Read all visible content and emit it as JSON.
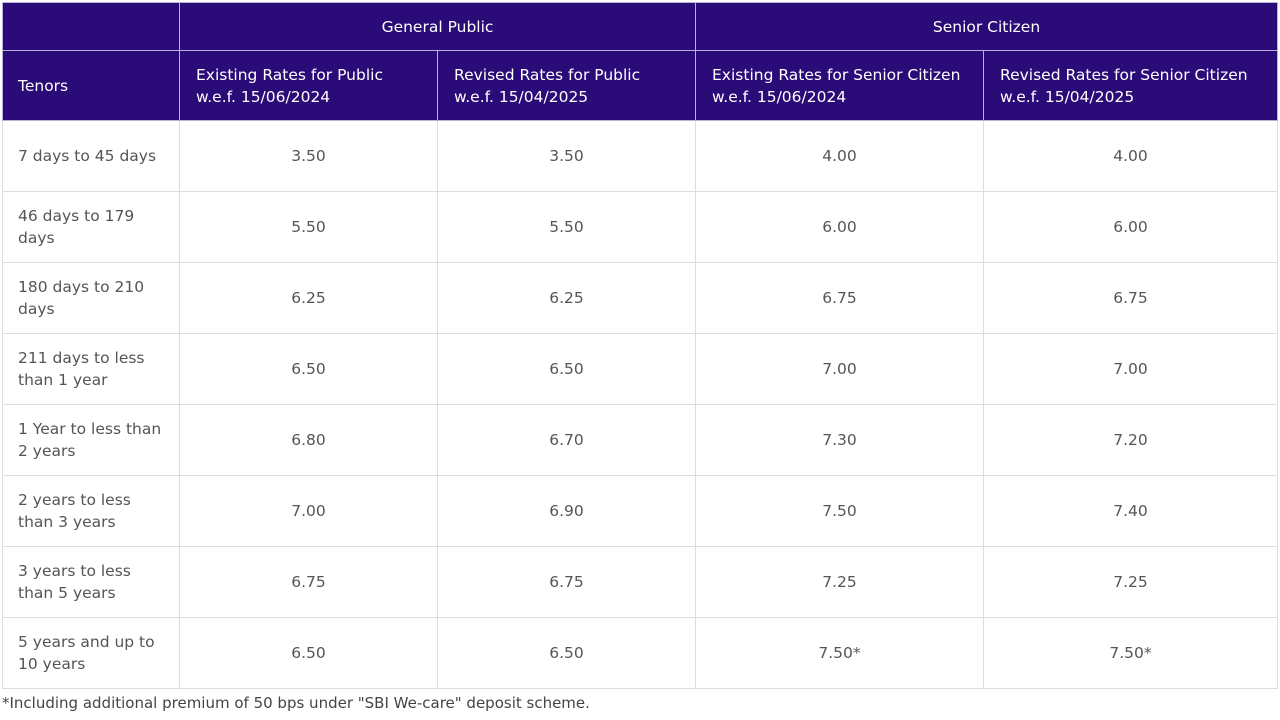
{
  "header": {
    "group_general": "General Public",
    "group_senior": "Senior Citizen",
    "tenors": "Tenors",
    "col_existing_public": "Existing Rates for Public w.e.f. 15/06/2024",
    "col_revised_public": "Revised Rates for Public w.e.f. 15/04/2025",
    "col_existing_senior": "Existing Rates for Senior Citizen w.e.f. 15/06/2024",
    "col_revised_senior": "Revised Rates for Senior Citizen w.e.f. 15/04/2025"
  },
  "rows": [
    {
      "tenor": "7 days to 45 days",
      "ep": "3.50",
      "rp": "3.50",
      "es": "4.00",
      "rs": "4.00"
    },
    {
      "tenor": "46 days to 179 days",
      "ep": "5.50",
      "rp": "5.50",
      "es": "6.00",
      "rs": "6.00"
    },
    {
      "tenor": "180 days to 210 days",
      "ep": "6.25",
      "rp": "6.25",
      "es": "6.75",
      "rs": "6.75"
    },
    {
      "tenor": "211 days to less than 1 year",
      "ep": "6.50",
      "rp": "6.50",
      "es": "7.00",
      "rs": "7.00"
    },
    {
      "tenor": "1 Year to less than 2 years",
      "ep": "6.80",
      "rp": "6.70",
      "es": "7.30",
      "rs": "7.20"
    },
    {
      "tenor": "2 years to less than 3 years",
      "ep": "7.00",
      "rp": "6.90",
      "es": "7.50",
      "rs": "7.40"
    },
    {
      "tenor": "3 years to less than 5 years",
      "ep": "6.75",
      "rp": "6.75",
      "es": "7.25",
      "rs": "7.25"
    },
    {
      "tenor": "5 years and up to 10 years",
      "ep": "6.50",
      "rp": "6.50",
      "es": "7.50*",
      "rs": "7.50*"
    }
  ],
  "footnote": "*Including additional premium of 50 bps under \"SBI We-care\" deposit scheme.",
  "colors": {
    "header_bg": "#2b0b78",
    "header_text": "#ffffff"
  }
}
